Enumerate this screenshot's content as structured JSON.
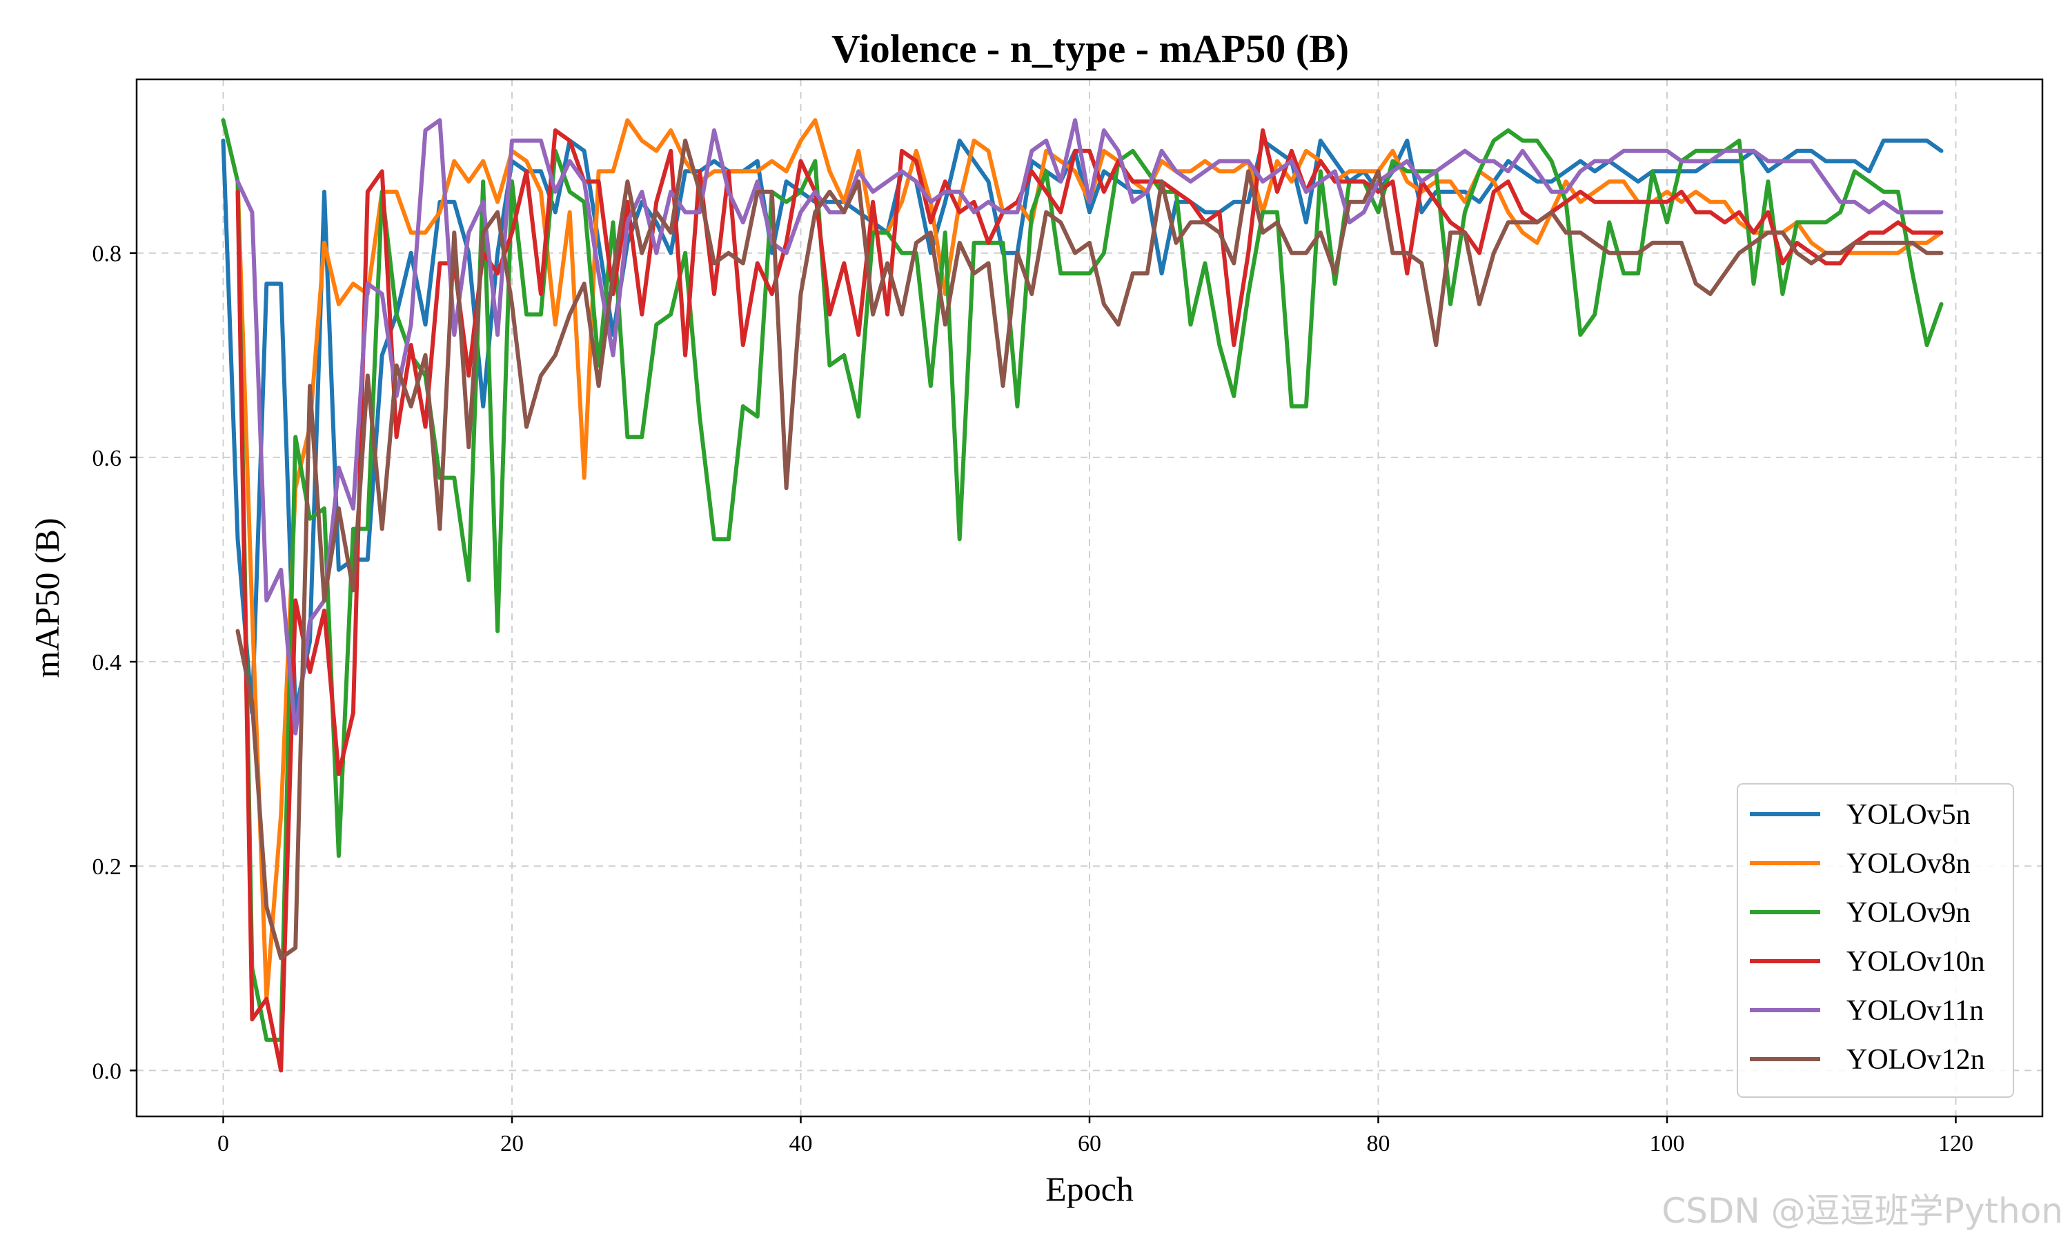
{
  "chart_data": {
    "type": "line",
    "title": "Violence - n_type - mAP50 (B)",
    "xlabel": "Epoch",
    "ylabel": "mAP50 (B)",
    "xlim": [
      -6,
      126
    ],
    "ylim": [
      -0.045,
      0.97
    ],
    "xticks": [
      0,
      20,
      40,
      60,
      80,
      100,
      120
    ],
    "yticks": [
      0.0,
      0.2,
      0.4,
      0.6,
      0.8
    ],
    "grid": true,
    "legend_position": "lower-right",
    "series": [
      {
        "name": "YOLOv5n",
        "color": "#1f77b4",
        "values": [
          0.91,
          0.52,
          0.35,
          0.77,
          0.77,
          0.35,
          0.42,
          0.86,
          0.49,
          0.5,
          0.5,
          0.7,
          0.74,
          0.8,
          0.73,
          0.85,
          0.85,
          0.8,
          0.65,
          0.8,
          0.89,
          0.88,
          0.88,
          0.84,
          0.91,
          0.9,
          0.81,
          0.72,
          0.81,
          0.85,
          0.83,
          0.8,
          0.88,
          0.88,
          0.89,
          0.88,
          0.88,
          0.89,
          0.8,
          0.87,
          0.86,
          0.85,
          0.85,
          0.85,
          0.84,
          0.83,
          0.82,
          0.88,
          0.87,
          0.8,
          0.85,
          0.91,
          0.89,
          0.87,
          0.8,
          0.8,
          0.89,
          0.88,
          0.87,
          0.9,
          0.84,
          0.88,
          0.87,
          0.86,
          0.86,
          0.78,
          0.85,
          0.85,
          0.84,
          0.84,
          0.85,
          0.85,
          0.91,
          0.9,
          0.89,
          0.83,
          0.91,
          0.89,
          0.87,
          0.88,
          0.86,
          0.88,
          0.91,
          0.84,
          0.86,
          0.86,
          0.86,
          0.85,
          0.87,
          0.89,
          0.88,
          0.87,
          0.87,
          0.88,
          0.89,
          0.88,
          0.89,
          0.88,
          0.87,
          0.88,
          0.88,
          0.88,
          0.88,
          0.89,
          0.89,
          0.89,
          0.9,
          0.88,
          0.89,
          0.9,
          0.9,
          0.89,
          0.89,
          0.89,
          0.88,
          0.91,
          0.91,
          0.91,
          0.91,
          0.9
        ]
      },
      {
        "name": "YOLOv8n",
        "color": "#ff7f0e",
        "values": [
          null,
          0.87,
          0.45,
          0.07,
          0.25,
          0.57,
          0.63,
          0.81,
          0.75,
          0.77,
          0.76,
          0.86,
          0.86,
          0.82,
          0.82,
          0.84,
          0.89,
          0.87,
          0.89,
          0.85,
          0.9,
          0.89,
          0.86,
          0.73,
          0.84,
          0.58,
          0.88,
          0.88,
          0.93,
          0.91,
          0.9,
          0.92,
          0.89,
          0.87,
          0.88,
          0.88,
          0.88,
          0.88,
          0.89,
          0.88,
          0.91,
          0.93,
          0.88,
          0.85,
          0.9,
          0.82,
          0.82,
          0.85,
          0.9,
          0.85,
          0.76,
          0.85,
          0.91,
          0.9,
          0.84,
          0.85,
          0.83,
          0.9,
          0.89,
          0.88,
          0.85,
          0.9,
          0.89,
          0.87,
          0.86,
          0.89,
          0.88,
          0.88,
          0.89,
          0.88,
          0.88,
          0.89,
          0.84,
          0.89,
          0.87,
          0.9,
          0.89,
          0.87,
          0.88,
          0.88,
          0.88,
          0.9,
          0.87,
          0.86,
          0.87,
          0.87,
          0.85,
          0.88,
          0.87,
          0.84,
          0.82,
          0.81,
          0.84,
          0.87,
          0.85,
          0.86,
          0.87,
          0.87,
          0.85,
          0.85,
          0.86,
          0.85,
          0.86,
          0.85,
          0.85,
          0.83,
          0.82,
          0.82,
          0.82,
          0.83,
          0.81,
          0.8,
          0.8,
          0.8,
          0.8,
          0.8,
          0.8,
          0.81,
          0.81,
          0.82
        ]
      },
      {
        "name": "YOLOv9n",
        "color": "#2ca02c",
        "values": [
          0.93,
          0.87,
          0.1,
          0.03,
          0.03,
          0.62,
          0.54,
          0.55,
          0.21,
          0.53,
          0.53,
          0.86,
          0.74,
          0.7,
          0.68,
          0.58,
          0.58,
          0.48,
          0.87,
          0.43,
          0.87,
          0.74,
          0.74,
          0.9,
          0.86,
          0.85,
          0.69,
          0.83,
          0.62,
          0.62,
          0.73,
          0.74,
          0.8,
          0.64,
          0.52,
          0.52,
          0.65,
          0.64,
          0.86,
          0.85,
          0.86,
          0.89,
          0.69,
          0.7,
          0.64,
          0.82,
          0.82,
          0.8,
          0.8,
          0.67,
          0.82,
          0.52,
          0.81,
          0.81,
          0.81,
          0.65,
          0.84,
          0.88,
          0.78,
          0.78,
          0.78,
          0.8,
          0.89,
          0.9,
          0.88,
          0.86,
          0.86,
          0.73,
          0.79,
          0.71,
          0.66,
          0.76,
          0.84,
          0.84,
          0.65,
          0.65,
          0.88,
          0.77,
          0.87,
          0.87,
          0.84,
          0.89,
          0.88,
          0.88,
          0.88,
          0.75,
          0.84,
          0.88,
          0.91,
          0.92,
          0.91,
          0.91,
          0.89,
          0.85,
          0.72,
          0.74,
          0.83,
          0.78,
          0.78,
          0.88,
          0.83,
          0.89,
          0.9,
          0.9,
          0.9,
          0.91,
          0.77,
          0.87,
          0.76,
          0.83,
          0.83,
          0.83,
          0.84,
          0.88,
          0.87,
          0.86,
          0.86,
          0.78,
          0.71,
          0.75
        ]
      },
      {
        "name": "YOLOv10n",
        "color": "#d62728",
        "values": [
          null,
          0.86,
          0.05,
          0.07,
          0.0,
          0.46,
          0.39,
          0.45,
          0.29,
          0.35,
          0.86,
          0.88,
          0.62,
          0.71,
          0.63,
          0.79,
          0.79,
          0.68,
          0.8,
          0.78,
          0.82,
          0.88,
          0.76,
          0.92,
          0.91,
          0.87,
          0.87,
          0.76,
          0.85,
          0.74,
          0.85,
          0.9,
          0.7,
          0.88,
          0.76,
          0.88,
          0.71,
          0.79,
          0.76,
          0.81,
          0.89,
          0.86,
          0.74,
          0.79,
          0.72,
          0.85,
          0.74,
          0.9,
          0.89,
          0.83,
          0.87,
          0.84,
          0.85,
          0.81,
          0.84,
          0.85,
          0.88,
          0.86,
          0.84,
          0.9,
          0.9,
          0.86,
          0.89,
          0.87,
          0.87,
          0.87,
          0.86,
          0.85,
          0.83,
          0.84,
          0.71,
          0.8,
          0.92,
          0.86,
          0.9,
          0.86,
          0.89,
          0.87,
          0.87,
          0.87,
          0.86,
          0.87,
          0.78,
          0.87,
          0.85,
          0.83,
          0.82,
          0.8,
          0.86,
          0.87,
          0.84,
          0.83,
          0.84,
          0.85,
          0.86,
          0.85,
          0.85,
          0.85,
          0.85,
          0.85,
          0.85,
          0.86,
          0.84,
          0.84,
          0.83,
          0.84,
          0.82,
          0.84,
          0.79,
          0.81,
          0.8,
          0.79,
          0.79,
          0.81,
          0.82,
          0.82,
          0.83,
          0.82,
          0.82,
          0.82
        ]
      },
      {
        "name": "YOLOv11n",
        "color": "#9467bd",
        "values": [
          null,
          0.87,
          0.84,
          0.46,
          0.49,
          0.33,
          0.44,
          0.46,
          0.59,
          0.55,
          0.77,
          0.76,
          0.66,
          0.73,
          0.92,
          0.93,
          0.72,
          0.82,
          0.85,
          0.72,
          0.91,
          0.91,
          0.91,
          0.86,
          0.89,
          0.87,
          0.78,
          0.7,
          0.83,
          0.86,
          0.8,
          0.86,
          0.84,
          0.84,
          0.92,
          0.86,
          0.83,
          0.87,
          0.81,
          0.8,
          0.84,
          0.86,
          0.84,
          0.84,
          0.88,
          0.86,
          0.87,
          0.88,
          0.87,
          0.85,
          0.86,
          0.86,
          0.84,
          0.85,
          0.84,
          0.84,
          0.9,
          0.91,
          0.87,
          0.93,
          0.85,
          0.92,
          0.9,
          0.85,
          0.86,
          0.9,
          0.88,
          0.87,
          0.88,
          0.89,
          0.89,
          0.89,
          0.87,
          0.88,
          0.89,
          0.86,
          0.87,
          0.88,
          0.83,
          0.84,
          0.87,
          0.88,
          0.89,
          0.87,
          0.88,
          0.89,
          0.9,
          0.89,
          0.89,
          0.88,
          0.9,
          0.88,
          0.86,
          0.86,
          0.88,
          0.89,
          0.89,
          0.9,
          0.9,
          0.9,
          0.9,
          0.89,
          0.89,
          0.89,
          0.9,
          0.9,
          0.9,
          0.89,
          0.89,
          0.89,
          0.89,
          0.87,
          0.85,
          0.85,
          0.84,
          0.85,
          0.84,
          0.84,
          0.84,
          0.84
        ]
      },
      {
        "name": "YOLOv12n",
        "color": "#8c564b",
        "values": [
          null,
          0.43,
          0.36,
          0.16,
          0.11,
          0.12,
          0.67,
          0.46,
          0.55,
          0.47,
          0.68,
          0.53,
          0.69,
          0.65,
          0.7,
          0.53,
          0.82,
          0.61,
          0.82,
          0.84,
          0.75,
          0.63,
          0.68,
          0.7,
          0.74,
          0.77,
          0.67,
          0.78,
          0.87,
          0.8,
          0.84,
          0.82,
          0.91,
          0.86,
          0.79,
          0.8,
          0.79,
          0.86,
          0.86,
          0.57,
          0.76,
          0.84,
          0.86,
          0.84,
          0.87,
          0.74,
          0.79,
          0.74,
          0.81,
          0.82,
          0.73,
          0.81,
          0.78,
          0.79,
          0.67,
          0.8,
          0.76,
          0.84,
          0.83,
          0.8,
          0.81,
          0.75,
          0.73,
          0.78,
          0.78,
          0.87,
          0.81,
          0.83,
          0.83,
          0.82,
          0.79,
          0.88,
          0.82,
          0.83,
          0.8,
          0.8,
          0.82,
          0.78,
          0.85,
          0.85,
          0.88,
          0.8,
          0.8,
          0.79,
          0.71,
          0.82,
          0.82,
          0.75,
          0.8,
          0.83,
          0.83,
          0.83,
          0.84,
          0.82,
          0.82,
          0.81,
          0.8,
          0.8,
          0.8,
          0.81,
          0.81,
          0.81,
          0.77,
          0.76,
          0.78,
          0.8,
          0.81,
          0.82,
          0.82,
          0.8,
          0.79,
          0.8,
          0.8,
          0.81,
          0.81,
          0.81,
          0.81,
          0.81,
          0.8,
          0.8
        ]
      }
    ]
  },
  "watermark": "CSDN @逗逗班学Python"
}
